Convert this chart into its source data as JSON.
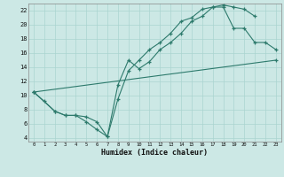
{
  "xlabel": "Humidex (Indice chaleur)",
  "bg_color": "#cce8e5",
  "grid_color": "#aad4d0",
  "line_color": "#2d7a6c",
  "xlim": [
    -0.5,
    23.5
  ],
  "ylim": [
    3.5,
    23.0
  ],
  "xticks": [
    0,
    1,
    2,
    3,
    4,
    5,
    6,
    7,
    8,
    9,
    10,
    11,
    12,
    13,
    14,
    15,
    16,
    17,
    18,
    19,
    20,
    21,
    22,
    23
  ],
  "yticks": [
    4,
    6,
    8,
    10,
    12,
    14,
    16,
    18,
    20,
    22
  ],
  "series": [
    {
      "x": [
        0,
        1,
        2,
        3,
        4,
        5,
        6,
        7,
        8,
        9,
        10,
        11,
        12,
        13,
        14,
        15,
        16,
        17,
        18,
        19,
        20,
        21
      ],
      "y": [
        10.5,
        9.2,
        7.8,
        7.2,
        7.2,
        6.3,
        5.2,
        4.2,
        11.5,
        15.0,
        13.8,
        14.8,
        16.5,
        17.5,
        18.8,
        20.5,
        21.2,
        22.5,
        22.8,
        22.5,
        22.2,
        21.2
      ]
    },
    {
      "x": [
        0,
        2,
        3,
        4,
        5,
        6,
        7,
        8,
        9,
        10,
        11,
        12,
        13,
        14,
        15,
        16,
        17,
        18,
        19,
        20,
        21,
        22,
        23
      ],
      "y": [
        10.5,
        7.8,
        7.2,
        7.2,
        7.0,
        6.3,
        4.2,
        9.5,
        13.5,
        15.0,
        16.5,
        17.5,
        18.8,
        20.5,
        21.0,
        22.2,
        22.5,
        22.5,
        19.5,
        19.5,
        17.5,
        17.5,
        16.5
      ]
    },
    {
      "x": [
        0,
        23
      ],
      "y": [
        10.5,
        15.0
      ]
    }
  ]
}
